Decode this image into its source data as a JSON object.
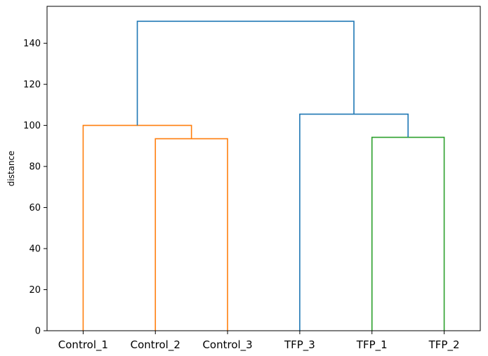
{
  "chart_data": {
    "type": "dendrogram",
    "title": "",
    "xlabel": "",
    "ylabel": "distance",
    "ylim": [
      0,
      158
    ],
    "yticks": [
      0,
      20,
      40,
      60,
      80,
      100,
      120,
      140
    ],
    "grid": false,
    "leaves": [
      "Control_1",
      "Control_2",
      "Control_3",
      "TFP_3",
      "TFP_1",
      "TFP_2"
    ],
    "merges": [
      {
        "left_leaf": "Control_2",
        "right_leaf": "Control_3",
        "left_height": 0,
        "right_height": 0,
        "height": 93.5,
        "color": "#ff7f0e"
      },
      {
        "left_leaf": "Control_1",
        "right_cluster": "Control_2+Control_3",
        "left_height": 0,
        "right_height": 93.5,
        "height": 100.0,
        "color": "#ff7f0e"
      },
      {
        "left_leaf": "TFP_1",
        "right_leaf": "TFP_2",
        "left_height": 0,
        "right_height": 0,
        "height": 94.2,
        "color": "#2ca02c"
      },
      {
        "left_leaf": "TFP_3",
        "right_cluster": "TFP_1+TFP_2",
        "left_height": 0,
        "right_height": 94.2,
        "height": 105.5,
        "color": "#1f77b4"
      },
      {
        "left_cluster": "Control_1+Control_2+Control_3",
        "right_cluster": "TFP_3+TFP_1+TFP_2",
        "left_height": 100.0,
        "right_height": 105.5,
        "height": 150.7,
        "color": "#1f77b4"
      }
    ]
  }
}
